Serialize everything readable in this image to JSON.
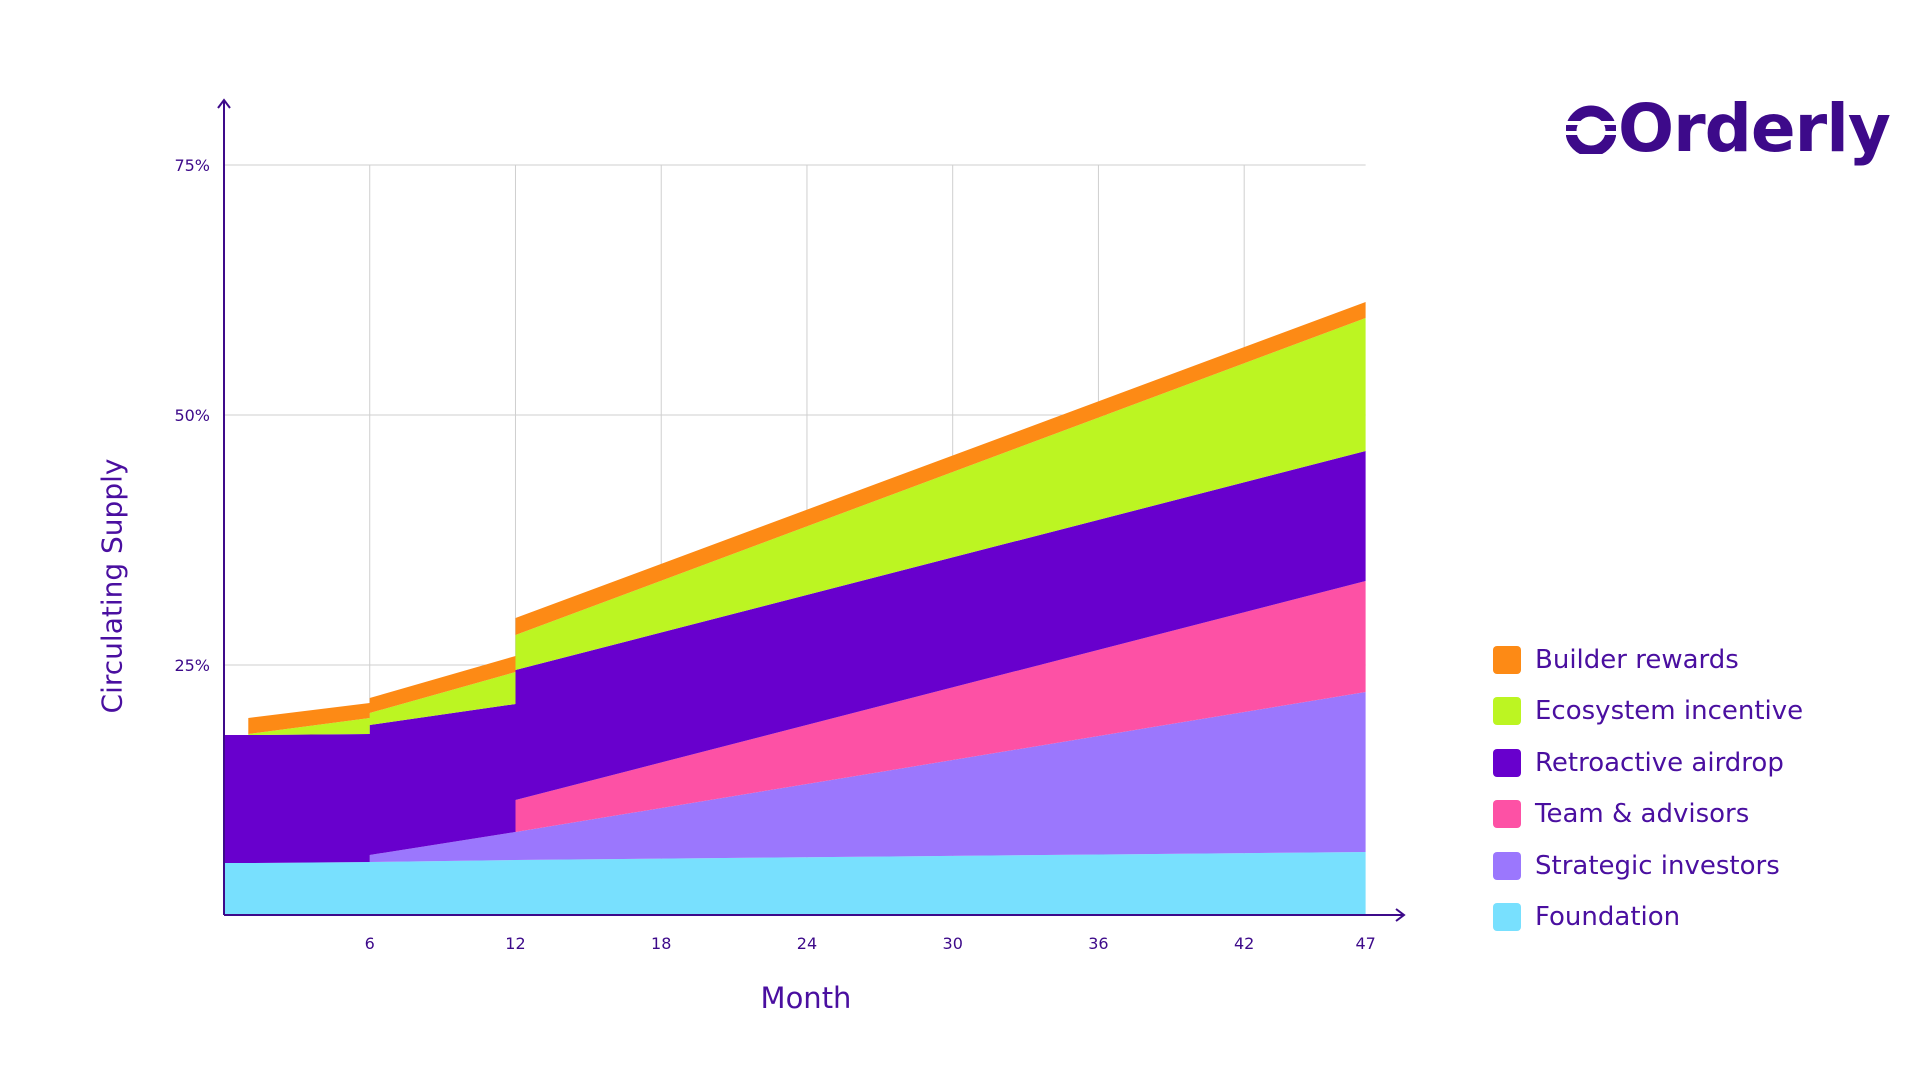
{
  "logo": {
    "text": "Orderly",
    "color": "#3d0a8a"
  },
  "chart_data": {
    "type": "area",
    "stacked": true,
    "xlabel": "Month",
    "ylabel": "Circulating Supply",
    "x": [
      0,
      1,
      6,
      6,
      12,
      12,
      47
    ],
    "x_ticks": [
      "6",
      "12",
      "18",
      "24",
      "30",
      "36",
      "42",
      "47"
    ],
    "x_tick_values": [
      6,
      12,
      18,
      24,
      30,
      36,
      42,
      47
    ],
    "y_ticks": [
      "25%",
      "50%",
      "75%"
    ],
    "y_tick_values": [
      25,
      50,
      75
    ],
    "xlim": [
      0,
      47
    ],
    "ylim": [
      0,
      75
    ],
    "grid": true,
    "legend_position": "right",
    "series": [
      {
        "name": "Foundation",
        "color": "#78e0fe",
        "values": [
          5.2,
          5.2,
          5.3,
          5.3,
          5.5,
          5.5,
          6.3
        ]
      },
      {
        "name": "Strategic investors",
        "color": "#9b77fd",
        "values": [
          0,
          0,
          0,
          0.7,
          2.8,
          2.8,
          16.0
        ]
      },
      {
        "name": "Team & advisors",
        "color": "#fd51a5",
        "values": [
          0,
          0,
          0,
          0,
          0,
          3.2,
          11.1
        ]
      },
      {
        "name": "Retroactive airdrop",
        "color": "#6800cd",
        "values": [
          12.8,
          12.8,
          12.8,
          13.0,
          12.8,
          13.0,
          13.0
        ]
      },
      {
        "name": "Ecosystem incentive",
        "color": "#bcf522",
        "values": [
          null,
          0.1,
          1.6,
          1.2,
          3.2,
          3.5,
          13.3
        ]
      },
      {
        "name": "Builder rewards",
        "color": "#fd8a15",
        "values": [
          null,
          1.6,
          1.5,
          1.5,
          1.6,
          1.7,
          1.6
        ]
      }
    ]
  },
  "legend": [
    {
      "label": "Builder rewards",
      "color": "#fd8a15"
    },
    {
      "label": "Ecosystem incentive",
      "color": "#bcf522"
    },
    {
      "label": "Retroactive airdrop",
      "color": "#6800cd"
    },
    {
      "label": "Team & advisors",
      "color": "#fd51a5"
    },
    {
      "label": "Strategic investors",
      "color": "#9b77fd"
    },
    {
      "label": "Foundation",
      "color": "#78e0fe"
    }
  ]
}
